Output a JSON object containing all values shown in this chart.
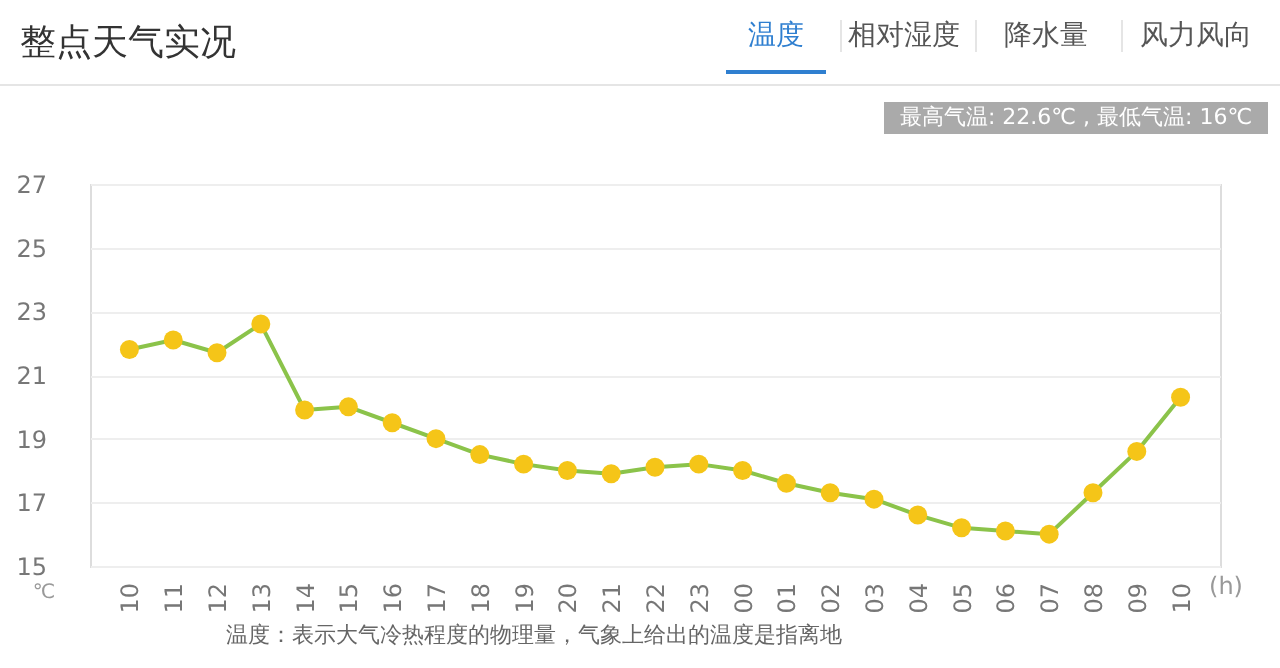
{
  "chart_data": {
    "type": "line",
    "title": "整点天气实况",
    "xlabel": "(h)",
    "ylabel": "℃",
    "categories": [
      "10",
      "11",
      "12",
      "13",
      "14",
      "15",
      "16",
      "17",
      "18",
      "19",
      "20",
      "21",
      "22",
      "23",
      "00",
      "01",
      "02",
      "03",
      "04",
      "05",
      "06",
      "07",
      "08",
      "09",
      "10"
    ],
    "series": [
      {
        "color": "#8bc34a",
        "values": [
          21.8,
          22.1,
          21.7,
          22.6,
          19.9,
          20.0,
          19.5,
          19.0,
          18.5,
          18.2,
          18.0,
          17.9,
          18.1,
          18.2,
          18.0,
          17.6,
          17.3,
          17.1,
          16.6,
          16.2,
          16.1,
          16.0,
          17.3,
          18.6,
          20.3
        ]
      }
    ],
    "ylim": [
      15,
      27
    ],
    "yticks": [
      15,
      17,
      19,
      21,
      23,
      25,
      27
    ],
    "grid": "y",
    "marker": "circle",
    "line_style": "solid",
    "annotations": [
      "温度",
      "相对湿度",
      "降水量",
      "风力风向",
      "最高气温: 22.6℃ , 最低气温: 16℃",
      "温度：表示大气冷热程度的物理量，气象上给出的温度是指离地"
    ]
  }
}
